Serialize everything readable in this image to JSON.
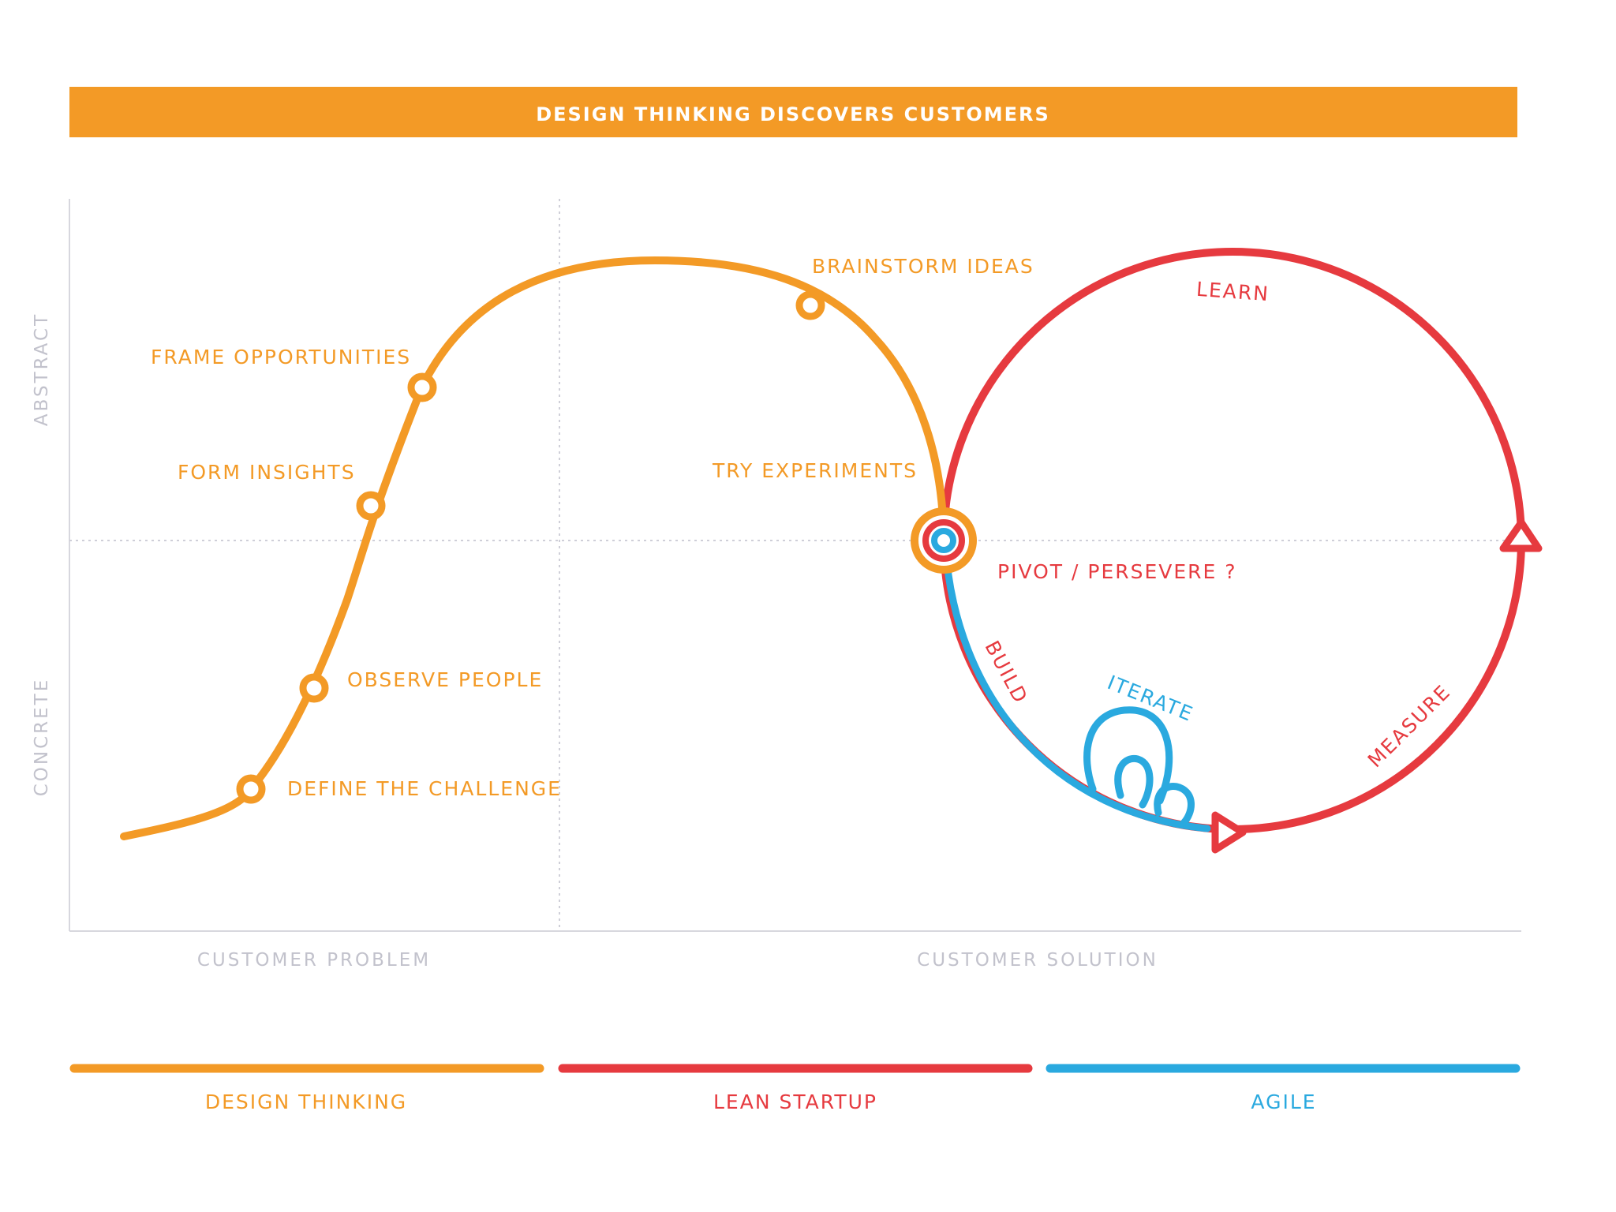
{
  "banner": {
    "title": "DESIGN THINKING DISCOVERS CUSTOMERS"
  },
  "axes": {
    "y_top": "ABSTRACT",
    "y_bottom": "CONCRETE",
    "x_left": "CUSTOMER PROBLEM",
    "x_right": "CUSTOMER SOLUTION"
  },
  "design_thinking_steps": {
    "define": "DEFINE THE CHALLENGE",
    "observe": "OBSERVE PEOPLE",
    "insights": "FORM INSIGHTS",
    "frame": "FRAME OPPORTUNITIES",
    "brainstorm": "BRAINSTORM IDEAS",
    "experiments": "TRY EXPERIMENTS"
  },
  "lean_loop": {
    "learn": "LEARN",
    "pivot": "PIVOT / PERSEVERE ?",
    "build": "BUILD",
    "measure": "MEASURE"
  },
  "agile": {
    "iterate": "ITERATE"
  },
  "legend": {
    "design_thinking": "DESIGN THINKING",
    "lean_startup": "LEAN STARTUP",
    "agile": "AGILE"
  },
  "colors": {
    "orange": "#f39a26",
    "red": "#e63a3f",
    "blue": "#2aa9df",
    "axis": "#d7d7de",
    "axis_text": "#c2c2cc"
  }
}
